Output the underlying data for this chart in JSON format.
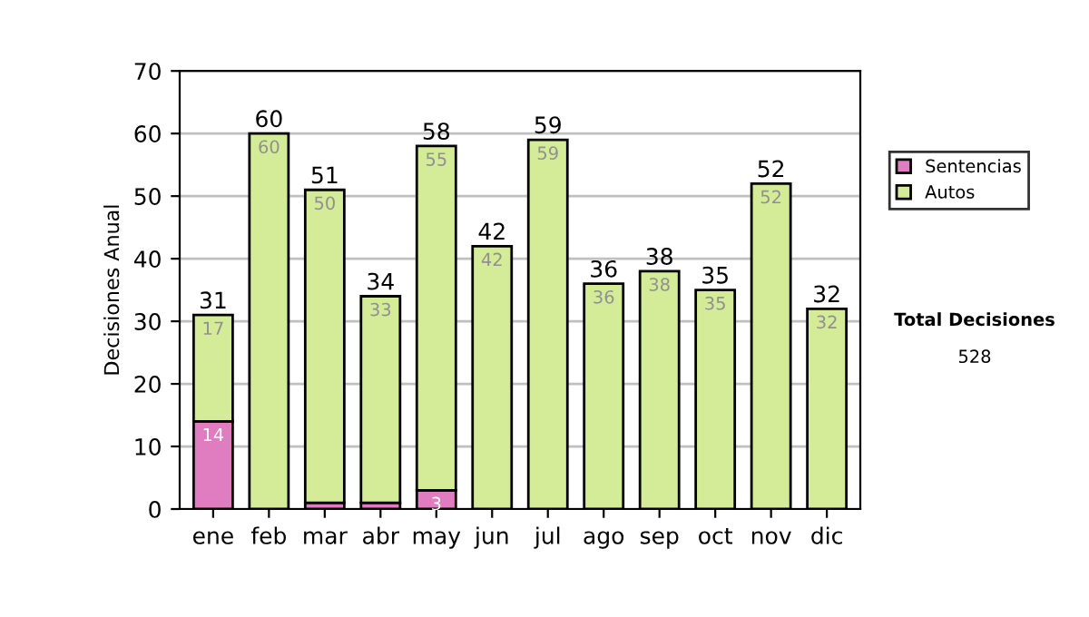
{
  "chart_data": {
    "type": "bar",
    "stacked": true,
    "ylabel": "Decisiones Anual",
    "categories": [
      "ene",
      "feb",
      "mar",
      "abr",
      "may",
      "jun",
      "jul",
      "ago",
      "sep",
      "oct",
      "nov",
      "dic"
    ],
    "series": [
      {
        "name": "Sentencias",
        "color": "#e07cc0",
        "values": [
          14,
          0,
          1,
          1,
          3,
          0,
          0,
          0,
          0,
          0,
          0,
          0
        ],
        "value_labels": [
          "14",
          null,
          null,
          null,
          "3",
          null,
          null,
          null,
          null,
          null,
          null,
          null
        ]
      },
      {
        "name": "Autos",
        "color": "#d4ec98",
        "values": [
          17,
          60,
          50,
          33,
          55,
          42,
          59,
          36,
          38,
          35,
          52,
          32
        ],
        "value_labels": [
          "17",
          "60",
          "50",
          "33",
          "55",
          "42",
          "59",
          "36",
          "38",
          "35",
          "52",
          "32"
        ]
      }
    ],
    "totals": [
      "31",
      "60",
      "51",
      "34",
      "58",
      "42",
      "59",
      "36",
      "38",
      "35",
      "52",
      "32"
    ],
    "ylim": [
      0,
      70
    ],
    "yticks": [
      0,
      10,
      20,
      30,
      40,
      50,
      60,
      70
    ],
    "grid": "y",
    "legend": "right",
    "annotations": [
      "Total Decisiones",
      "528"
    ]
  }
}
